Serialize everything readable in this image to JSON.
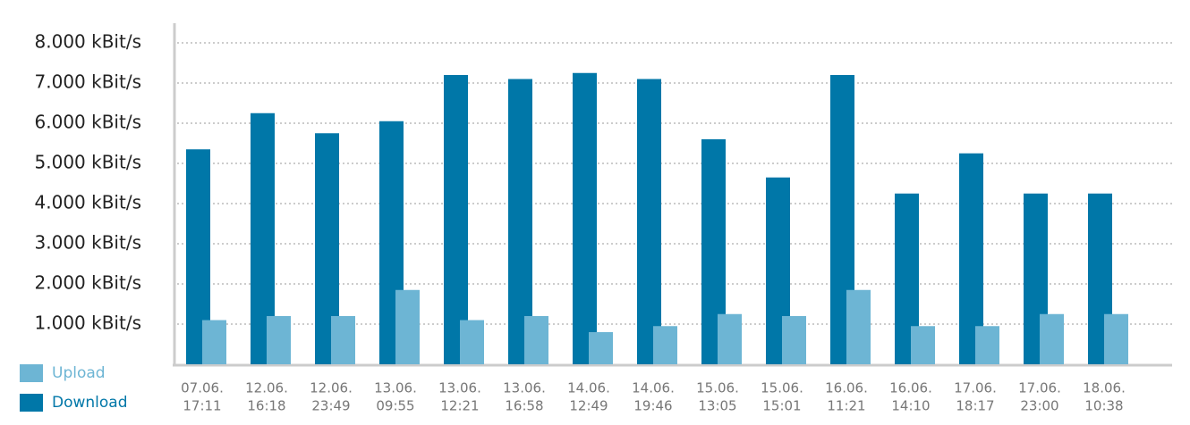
{
  "chart_data": {
    "type": "bar",
    "categories": [
      [
        "07.06.",
        "17:11"
      ],
      [
        "12.06.",
        "16:18"
      ],
      [
        "12.06.",
        "23:49"
      ],
      [
        "13.06.",
        "09:55"
      ],
      [
        "13.06.",
        "12:21"
      ],
      [
        "13.06.",
        "16:58"
      ],
      [
        "14.06.",
        "12:49"
      ],
      [
        "14.06.",
        "19:46"
      ],
      [
        "15.06.",
        "13:05"
      ],
      [
        "15.06.",
        "15:01"
      ],
      [
        "16.06.",
        "11:21"
      ],
      [
        "16.06.",
        "14:10"
      ],
      [
        "17.06.",
        "18:17"
      ],
      [
        "17.06.",
        "23:00"
      ],
      [
        "18.06.",
        "10:38"
      ]
    ],
    "series": [
      {
        "name": "Download",
        "color": "#0077a8",
        "values": [
          5350,
          6250,
          5750,
          6050,
          7200,
          7100,
          7250,
          7100,
          5600,
          4650,
          7200,
          4250,
          5250,
          4250,
          4250
        ]
      },
      {
        "name": "Upload",
        "color": "#6db5d4",
        "values": [
          1100,
          1200,
          1200,
          1850,
          1100,
          1200,
          800,
          950,
          1250,
          1200,
          1850,
          950,
          950,
          1250,
          1250
        ]
      }
    ],
    "ylim": [
      0,
      8400
    ],
    "yticks": [
      {
        "value": 1000,
        "label": "1.000 kBit/s"
      },
      {
        "value": 2000,
        "label": "2.000 kBit/s"
      },
      {
        "value": 3000,
        "label": "3.000 kBit/s"
      },
      {
        "value": 4000,
        "label": "4.000 kBit/s"
      },
      {
        "value": 5000,
        "label": "5.000 kBit/s"
      },
      {
        "value": 6000,
        "label": "6.000 kBit/s"
      },
      {
        "value": 7000,
        "label": "7.000 kBit/s"
      },
      {
        "value": 8000,
        "label": "8.000 kBit/s"
      }
    ],
    "grid": true
  }
}
